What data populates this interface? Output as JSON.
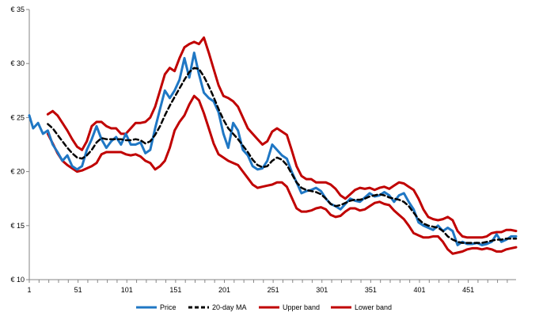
{
  "chart_data": {
    "type": "line",
    "title": "",
    "xlabel": "",
    "ylabel": "",
    "x_range": [
      1,
      500
    ],
    "ylim": [
      10,
      35
    ],
    "x_ticks": [
      "1",
      "51",
      "101",
      "151",
      "201",
      "251",
      "301",
      "351",
      "401",
      "451"
    ],
    "y_ticks": [
      "€ 10",
      "€ 15",
      "€ 20",
      "€ 25",
      "€ 30",
      "€ 35"
    ],
    "grid": false,
    "legend_position": "bottom",
    "series": [
      {
        "name": "Price",
        "color": "#1F77C4",
        "style": "solid",
        "x": [
          1,
          5,
          10,
          15,
          20,
          25,
          30,
          35,
          40,
          45,
          50,
          55,
          60,
          65,
          70,
          75,
          80,
          85,
          90,
          95,
          100,
          105,
          110,
          115,
          120,
          125,
          130,
          135,
          140,
          145,
          150,
          155,
          160,
          165,
          170,
          175,
          180,
          185,
          190,
          195,
          200,
          205,
          210,
          215,
          220,
          225,
          230,
          235,
          240,
          245,
          250,
          255,
          260,
          265,
          270,
          275,
          280,
          285,
          290,
          295,
          300,
          305,
          310,
          315,
          320,
          325,
          330,
          335,
          340,
          345,
          350,
          355,
          360,
          365,
          370,
          375,
          380,
          385,
          390,
          395,
          400,
          405,
          410,
          415,
          420,
          425,
          430,
          435,
          440,
          445,
          450,
          455,
          460,
          465,
          470,
          475,
          480,
          485,
          490,
          495,
          500
        ],
        "values": [
          25.2,
          24.0,
          24.5,
          23.5,
          23.8,
          22.5,
          21.8,
          21.0,
          21.5,
          20.5,
          20.2,
          20.5,
          22.0,
          23.0,
          24.2,
          23.0,
          22.2,
          22.8,
          23.2,
          22.5,
          23.5,
          22.5,
          22.5,
          22.7,
          21.7,
          22.0,
          24.0,
          25.8,
          27.5,
          26.8,
          27.5,
          28.5,
          30.5,
          28.7,
          31.0,
          29.0,
          27.3,
          26.8,
          26.5,
          25.5,
          23.5,
          22.2,
          24.5,
          23.8,
          22.0,
          21.5,
          20.5,
          20.2,
          20.3,
          21.0,
          22.5,
          22.0,
          21.5,
          21.2,
          20.0,
          19.0,
          18.0,
          18.2,
          18.3,
          18.5,
          18.2,
          17.5,
          17.0,
          16.8,
          16.5,
          17.0,
          17.5,
          17.3,
          17.2,
          17.6,
          18.0,
          17.7,
          17.8,
          18.1,
          17.8,
          17.2,
          17.8,
          18.0,
          17.2,
          16.5,
          15.3,
          15.0,
          14.8,
          14.6,
          15.0,
          14.5,
          14.8,
          14.5,
          13.2,
          13.5,
          13.3,
          13.3,
          13.4,
          13.2,
          13.3,
          13.5,
          14.2,
          13.5,
          13.7,
          14.0,
          14.0
        ]
      },
      {
        "name": "20-day MA",
        "color": "#000000",
        "style": "dashed",
        "x": [
          20,
          25,
          30,
          35,
          40,
          45,
          50,
          55,
          60,
          65,
          70,
          75,
          80,
          85,
          90,
          95,
          100,
          105,
          110,
          115,
          120,
          125,
          130,
          135,
          140,
          145,
          150,
          155,
          160,
          165,
          170,
          175,
          180,
          185,
          190,
          195,
          200,
          205,
          210,
          215,
          220,
          225,
          230,
          235,
          240,
          245,
          250,
          255,
          260,
          265,
          270,
          275,
          280,
          285,
          290,
          295,
          300,
          305,
          310,
          315,
          320,
          325,
          330,
          335,
          340,
          345,
          350,
          355,
          360,
          365,
          370,
          375,
          380,
          385,
          390,
          395,
          400,
          405,
          410,
          415,
          420,
          425,
          430,
          435,
          440,
          445,
          450,
          455,
          460,
          465,
          470,
          475,
          480,
          485,
          490,
          495,
          500
        ],
        "values": [
          24.4,
          24.0,
          23.4,
          22.8,
          22.2,
          21.7,
          21.3,
          21.2,
          21.5,
          22.0,
          22.7,
          23.1,
          23.0,
          23.0,
          23.0,
          23.0,
          22.9,
          22.9,
          23.0,
          22.9,
          22.6,
          22.8,
          23.4,
          24.2,
          25.2,
          26.1,
          26.9,
          27.7,
          28.5,
          29.2,
          29.6,
          29.5,
          28.8,
          27.9,
          26.9,
          25.8,
          24.8,
          24.0,
          23.5,
          23.0,
          22.4,
          21.8,
          21.1,
          20.6,
          20.4,
          20.5,
          21.0,
          21.3,
          21.1,
          20.6,
          19.8,
          19.0,
          18.5,
          18.3,
          18.2,
          18.1,
          17.9,
          17.5,
          17.0,
          16.8,
          16.9,
          17.1,
          17.3,
          17.4,
          17.4,
          17.5,
          17.7,
          17.8,
          17.9,
          17.8,
          17.6,
          17.5,
          17.4,
          17.2,
          16.8,
          16.2,
          15.6,
          15.2,
          15.0,
          14.9,
          14.8,
          14.5,
          14.0,
          13.7,
          13.5,
          13.4,
          13.4,
          13.4,
          13.4,
          13.4,
          13.5,
          13.6,
          13.7,
          13.7,
          13.8,
          13.8,
          13.8
        ]
      },
      {
        "name": "Upper band",
        "color": "#C00000",
        "style": "solid",
        "x": [
          20,
          25,
          30,
          35,
          40,
          45,
          50,
          55,
          60,
          65,
          70,
          75,
          80,
          85,
          90,
          95,
          100,
          105,
          110,
          115,
          120,
          125,
          130,
          135,
          140,
          145,
          150,
          155,
          160,
          165,
          170,
          175,
          180,
          185,
          190,
          195,
          200,
          205,
          210,
          215,
          220,
          225,
          230,
          235,
          240,
          245,
          250,
          255,
          260,
          265,
          270,
          275,
          280,
          285,
          290,
          295,
          300,
          305,
          310,
          315,
          320,
          325,
          330,
          335,
          340,
          345,
          350,
          355,
          360,
          365,
          370,
          375,
          380,
          385,
          390,
          395,
          400,
          405,
          410,
          415,
          420,
          425,
          430,
          435,
          440,
          445,
          450,
          455,
          460,
          465,
          470,
          475,
          480,
          485,
          490,
          495,
          500
        ],
        "values": [
          25.3,
          25.6,
          25.2,
          24.5,
          23.8,
          23.0,
          22.3,
          22.0,
          22.8,
          24.2,
          24.6,
          24.6,
          24.2,
          24.0,
          24.0,
          23.5,
          23.5,
          24.0,
          24.5,
          24.5,
          24.6,
          25.0,
          26.0,
          27.5,
          29.0,
          29.6,
          29.3,
          30.5,
          31.5,
          31.8,
          32.0,
          31.8,
          32.4,
          31.0,
          29.5,
          28.0,
          27.0,
          26.8,
          26.5,
          26.0,
          25.0,
          24.0,
          23.5,
          23.0,
          22.5,
          22.8,
          23.7,
          24.0,
          23.7,
          23.4,
          22.0,
          20.5,
          19.6,
          19.3,
          19.3,
          19.0,
          19.0,
          19.0,
          18.8,
          18.4,
          17.8,
          17.5,
          17.9,
          18.3,
          18.5,
          18.4,
          18.5,
          18.3,
          18.5,
          18.6,
          18.4,
          18.7,
          19.0,
          18.9,
          18.6,
          18.3,
          17.5,
          16.5,
          15.8,
          15.6,
          15.5,
          15.6,
          15.8,
          15.5,
          14.5,
          14.0,
          13.9,
          13.9,
          13.9,
          13.9,
          14.0,
          14.3,
          14.4,
          14.4,
          14.6,
          14.6,
          14.5
        ]
      },
      {
        "name": "Lower band",
        "color": "#C00000",
        "style": "solid",
        "x": [
          20,
          25,
          30,
          35,
          40,
          45,
          50,
          55,
          60,
          65,
          70,
          75,
          80,
          85,
          90,
          95,
          100,
          105,
          110,
          115,
          120,
          125,
          130,
          135,
          140,
          145,
          150,
          155,
          160,
          165,
          170,
          175,
          180,
          185,
          190,
          195,
          200,
          205,
          210,
          215,
          220,
          225,
          230,
          235,
          240,
          245,
          250,
          255,
          260,
          265,
          270,
          275,
          280,
          285,
          290,
          295,
          300,
          305,
          310,
          315,
          320,
          325,
          330,
          335,
          340,
          345,
          350,
          355,
          360,
          365,
          370,
          375,
          380,
          385,
          390,
          395,
          400,
          405,
          410,
          415,
          420,
          425,
          430,
          435,
          440,
          445,
          450,
          455,
          460,
          465,
          470,
          475,
          480,
          485,
          490,
          495,
          500
        ],
        "values": [
          23.5,
          22.6,
          21.7,
          21.0,
          20.6,
          20.3,
          20.0,
          20.1,
          20.3,
          20.5,
          20.8,
          21.6,
          21.8,
          21.8,
          21.8,
          21.8,
          21.6,
          21.5,
          21.6,
          21.4,
          21.0,
          20.8,
          20.2,
          20.5,
          21.0,
          22.2,
          23.8,
          24.6,
          25.2,
          26.2,
          27.0,
          26.6,
          25.4,
          24.0,
          22.6,
          21.6,
          21.3,
          21.0,
          20.8,
          20.6,
          20.0,
          19.4,
          18.8,
          18.5,
          18.6,
          18.7,
          18.8,
          19.0,
          19.0,
          18.6,
          17.6,
          16.6,
          16.3,
          16.3,
          16.4,
          16.6,
          16.7,
          16.5,
          16.0,
          15.8,
          15.9,
          16.3,
          16.6,
          16.6,
          16.4,
          16.5,
          16.8,
          17.1,
          17.2,
          17.0,
          16.9,
          16.4,
          16.0,
          15.6,
          15.0,
          14.3,
          14.1,
          13.9,
          13.9,
          14.0,
          14.0,
          13.5,
          12.8,
          12.4,
          12.5,
          12.6,
          12.8,
          12.9,
          12.9,
          12.8,
          12.9,
          12.8,
          12.6,
          12.6,
          12.8,
          12.9,
          13.0
        ]
      }
    ]
  }
}
